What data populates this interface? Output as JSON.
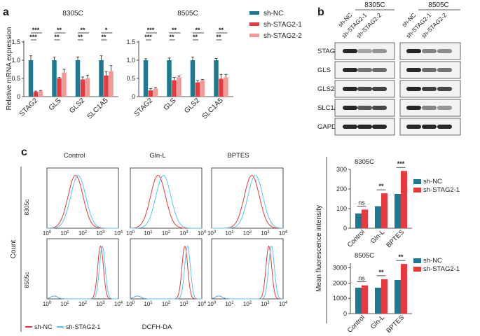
{
  "panel_labels": {
    "a": "a",
    "b": "b",
    "c": "c"
  },
  "colors": {
    "nc": "#1b7a91",
    "stag1": "#e8393f",
    "stag2": "#f29a98",
    "red_line": "#e8393f",
    "blue_line": "#58c6ea",
    "grid": "#d8d8d8",
    "band": "#1a1a1a"
  },
  "panel_a": {
    "ylabel": "Relative mRNA expression",
    "legend": [
      "sh-NC",
      "sh-STAG2-1",
      "sh-STAG2-2"
    ],
    "yticks": [
      "0",
      "0.5",
      "1.0",
      "1.5"
    ]
  },
  "panel_b": {
    "groups": [
      "8305C",
      "8505C"
    ],
    "lanes": [
      "sh-NC",
      "sh-STAG2-1",
      "sh-STAG2-2",
      "sh-NC",
      "sh-STAG2-1",
      "sh-STAG2-2"
    ],
    "proteins": [
      "STAG2",
      "GLS",
      "GLS2",
      "SLC1A5",
      "GAPDH"
    ]
  },
  "panel_c": {
    "columns": [
      "Control",
      "Gln-L",
      "BPTES"
    ],
    "rows": [
      "8305c",
      "8505c"
    ],
    "ylabel": "Count",
    "xlabel": "DCFH-DA",
    "legend": [
      "sh-NC",
      "sh-STAG2-1"
    ],
    "xticks": [
      {
        "b": "10",
        "e": "0"
      },
      {
        "b": "10",
        "e": "1"
      },
      {
        "b": "10",
        "e": "2"
      },
      {
        "b": "10",
        "e": "3"
      },
      {
        "b": "10",
        "e": "4"
      }
    ],
    "mfi_ylabel": "Mean fluorescence intensity",
    "bar_legend": [
      "sh-NC",
      "sh-STAG2-1"
    ]
  },
  "chart_data": [
    {
      "type": "bar",
      "title": "8305C",
      "xlabel": "",
      "ylabel": "Relative mRNA expression",
      "ylim": [
        0,
        1.5
      ],
      "categories": [
        "STAG2",
        "GLS",
        "GLS2",
        "SLC1A5"
      ],
      "series": [
        {
          "name": "sh-NC",
          "values": [
            1.0,
            1.0,
            1.0,
            1.0
          ],
          "errors": [
            0.12,
            0.08,
            0.09,
            0.12
          ]
        },
        {
          "name": "sh-STAG2-1",
          "values": [
            0.13,
            0.5,
            0.47,
            0.58
          ],
          "errors": [
            0.02,
            0.03,
            0.07,
            0.11
          ]
        },
        {
          "name": "sh-STAG2-2",
          "values": [
            0.15,
            0.66,
            0.5,
            0.7
          ],
          "errors": [
            0.02,
            0.09,
            0.09,
            0.15
          ]
        }
      ],
      "significance": [
        {
          "category": "STAG2",
          "upper": "***",
          "lower": "***"
        },
        {
          "category": "GLS",
          "upper": "**",
          "lower": "**"
        },
        {
          "category": "GLS2",
          "upper": "**",
          "lower": "**"
        },
        {
          "category": "SLC1A5",
          "upper": "*",
          "lower": "**"
        }
      ]
    },
    {
      "type": "bar",
      "title": "8505C",
      "xlabel": "",
      "ylabel": "",
      "ylim": [
        0,
        1.5
      ],
      "categories": [
        "STAG2",
        "GLS",
        "GLS2",
        "SLC1A5"
      ],
      "series": [
        {
          "name": "sh-NC",
          "values": [
            1.0,
            1.0,
            1.0,
            1.0
          ],
          "errors": [
            0.04,
            0.06,
            0.09,
            0.05
          ]
        },
        {
          "name": "sh-STAG2-1",
          "values": [
            0.17,
            0.45,
            0.39,
            0.49
          ],
          "errors": [
            0.05,
            0.08,
            0.05,
            0.12
          ]
        },
        {
          "name": "sh-STAG2-2",
          "values": [
            0.22,
            0.53,
            0.45,
            0.53
          ],
          "errors": [
            0.03,
            0.04,
            0.02,
            0.08
          ]
        }
      ],
      "significance": [
        {
          "category": "STAG2",
          "upper": "***",
          "lower": "***"
        },
        {
          "category": "GLS",
          "upper": "**",
          "lower": "**"
        },
        {
          "category": "GLS2",
          "upper": "**",
          "lower": "**"
        },
        {
          "category": "SLC1A5",
          "upper": "**",
          "lower": "**"
        }
      ]
    },
    {
      "type": "bar",
      "title": "8305C",
      "xlabel": "",
      "ylabel": "Mean fluorescence intensity",
      "ylim": [
        0,
        300
      ],
      "yticks": [
        "0",
        "100",
        "200",
        "300"
      ],
      "categories": [
        "Control",
        "Gln-L",
        "BPTES"
      ],
      "series": [
        {
          "name": "sh-NC",
          "values": [
            75,
            112,
            175
          ]
        },
        {
          "name": "sh-STAG2-1",
          "values": [
            95,
            178,
            292
          ]
        }
      ],
      "significance": [
        "ns",
        "**",
        "***"
      ]
    },
    {
      "type": "bar",
      "title": "8505C",
      "xlabel": "",
      "ylabel": "Mean fluorescence intensity",
      "ylim": [
        0,
        3000
      ],
      "yticks": [
        "0",
        "1000",
        "2000",
        "3000"
      ],
      "categories": [
        "Control",
        "Gln-L",
        "BPTES"
      ],
      "series": [
        {
          "name": "sh-NC",
          "values": [
            1700,
            1700,
            2200
          ]
        },
        {
          "name": "sh-STAG2-1",
          "values": [
            1850,
            2250,
            3250
          ]
        }
      ],
      "significance": [
        "ns",
        "**",
        "**"
      ]
    }
  ]
}
